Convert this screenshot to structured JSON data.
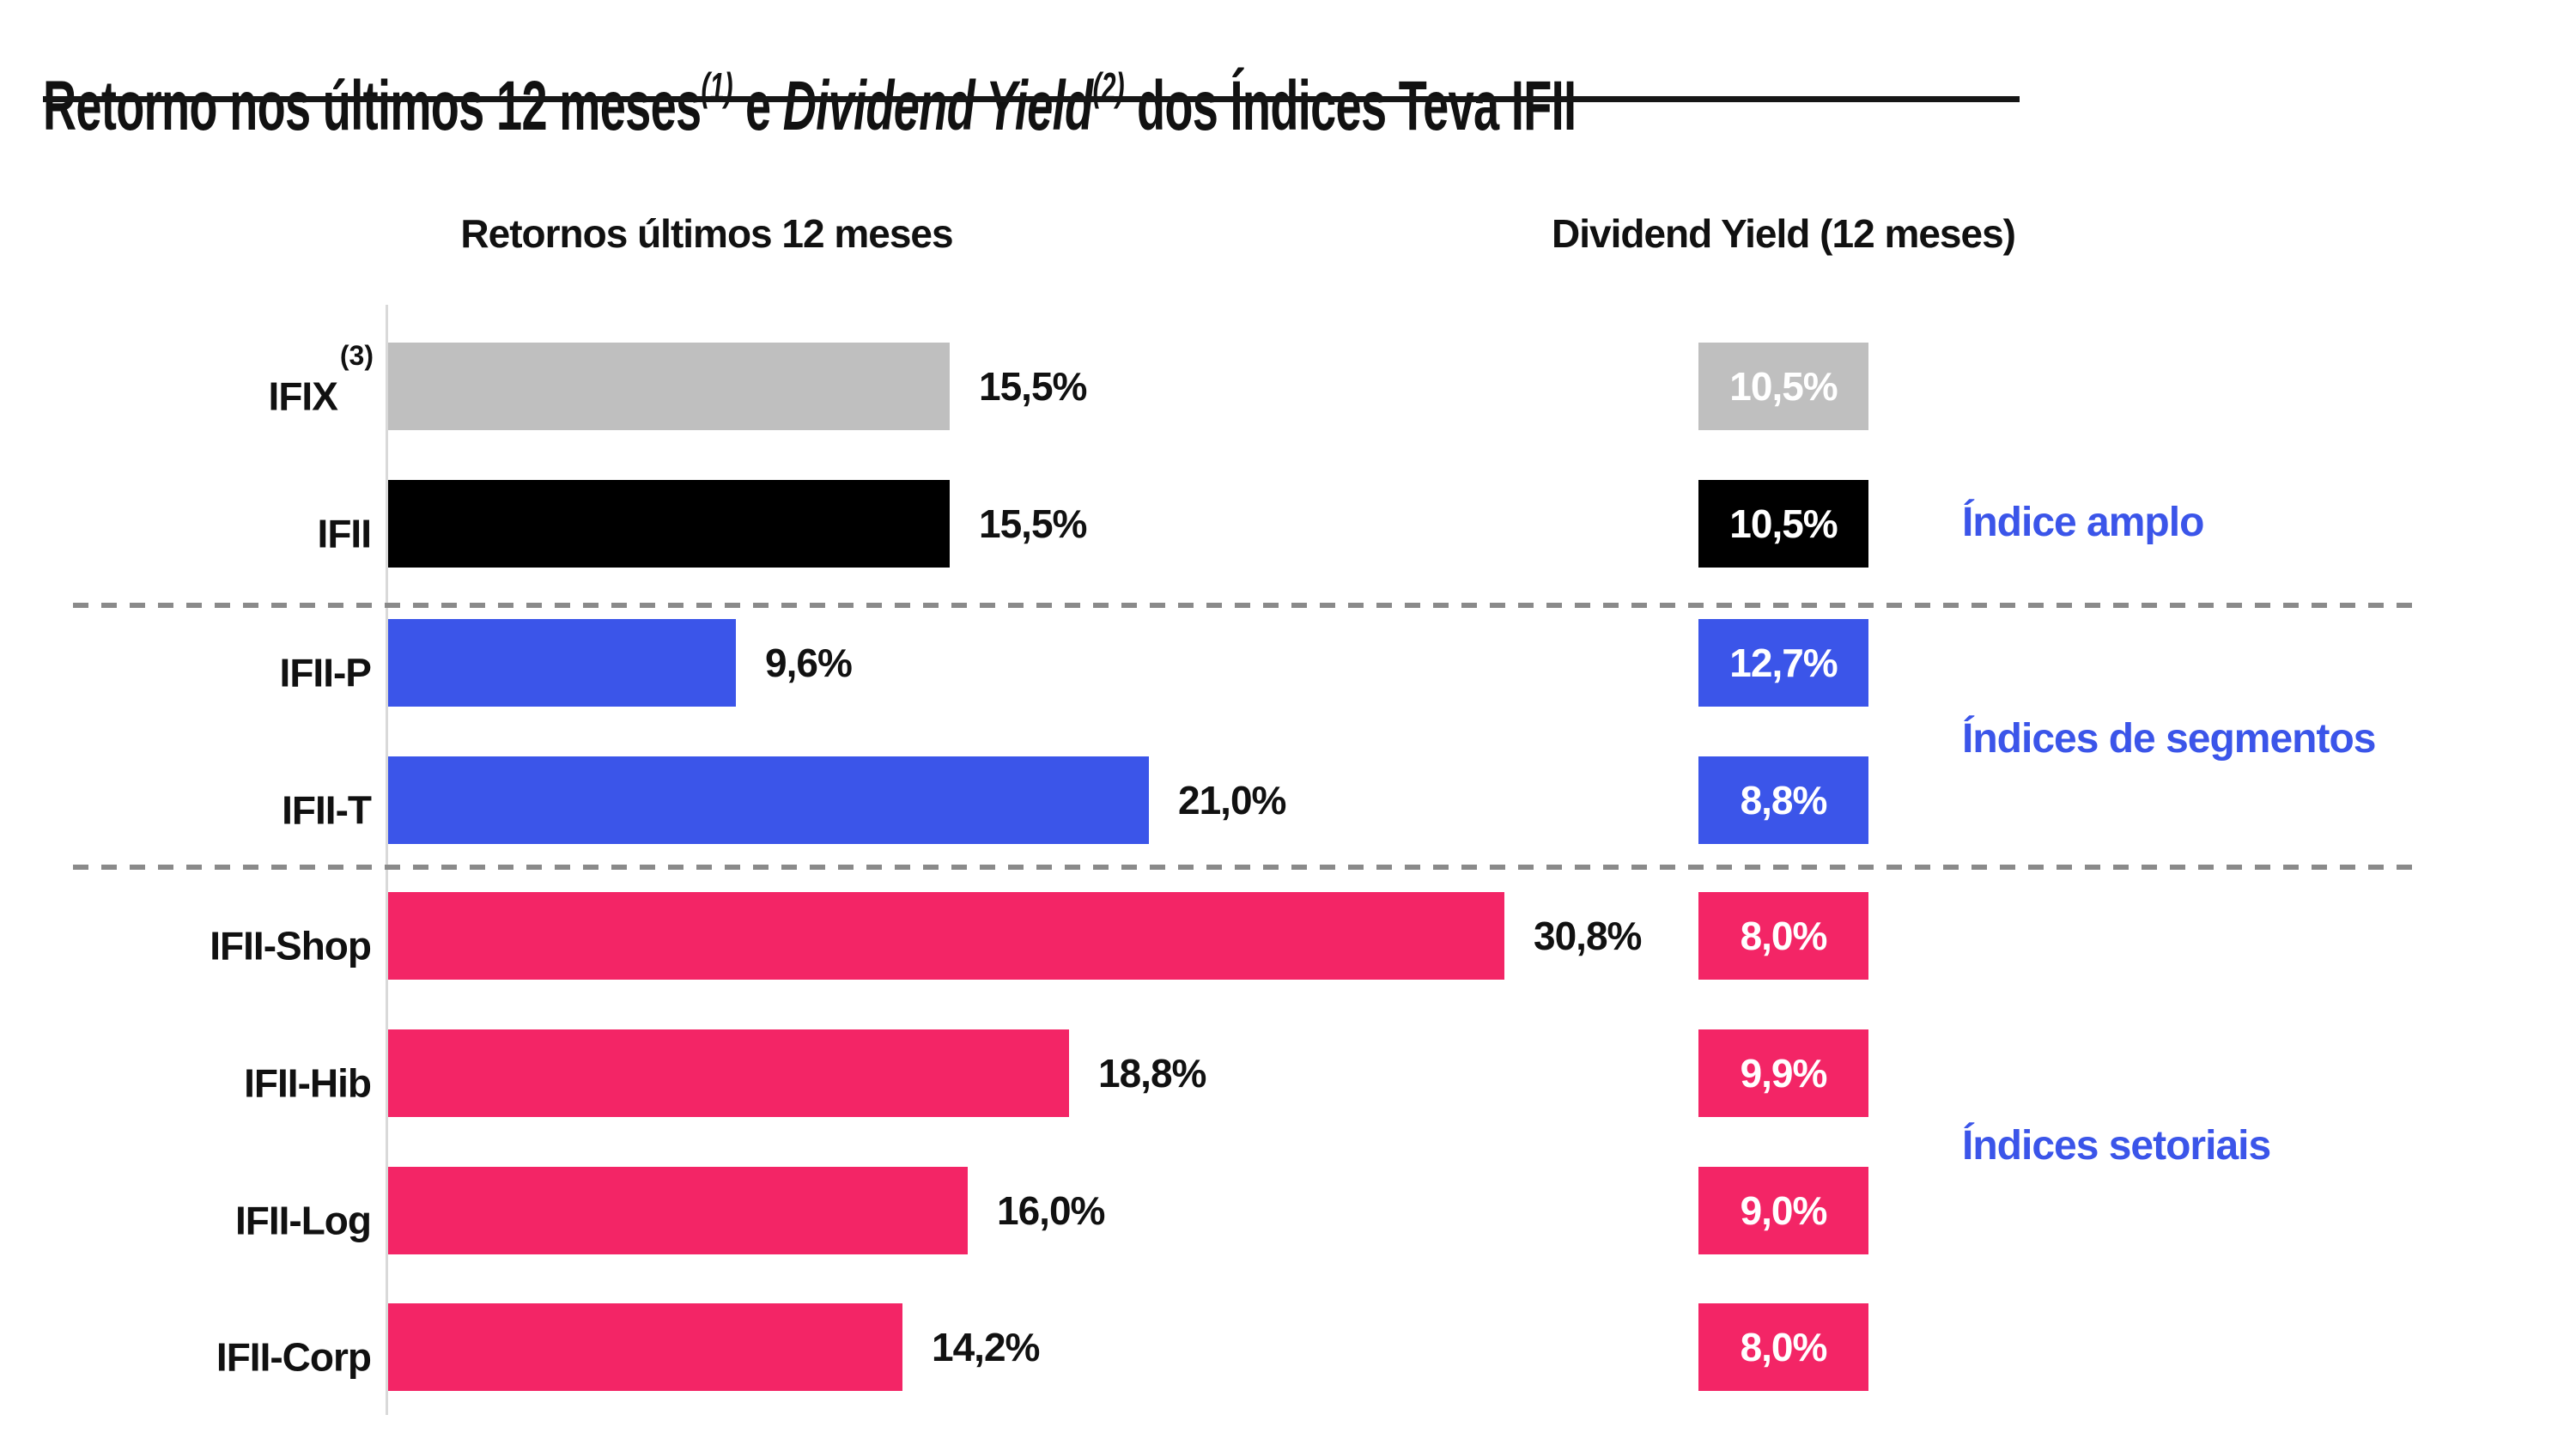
{
  "title": {
    "prefix": "Retorno nos últimos 12 meses",
    "sup1": "(1)",
    "connector": " e ",
    "italic_part": "Dividend Yield",
    "sup2": "(2)",
    "suffix": " dos Índices Teva IFII"
  },
  "headers": {
    "returns": "Retornos últimos 12 meses",
    "dividend_yield": "Dividend Yield (12 meses)"
  },
  "colors": {
    "gray": "#BFBFBF",
    "black": "#000000",
    "blue": "#3B55E9",
    "pink": "#F32566",
    "group_label_blue": "#3B55E9",
    "dashed_divider": "#8A8A8A",
    "axis_line": "#D9D9D9"
  },
  "chart_data": {
    "type": "bar",
    "orientation": "horizontal",
    "title": "Retorno nos últimos 12 meses e Dividend Yield dos Índices Teva IFII",
    "x_axis_range_pct": [
      0,
      31
    ],
    "grid": false,
    "categories": [
      "IFIX",
      "IFII",
      "IFII-P",
      "IFII-T",
      "IFII-Shop",
      "IFII-Hib",
      "IFII-Log",
      "IFII-Corp"
    ],
    "series": [
      {
        "name": "Retornos últimos 12 meses",
        "values": [
          15.5,
          15.5,
          9.6,
          21.0,
          30.8,
          18.8,
          16.0,
          14.2
        ]
      },
      {
        "name": "Dividend Yield (12 meses)",
        "values": [
          10.5,
          10.5,
          12.7,
          8.8,
          8.0,
          9.9,
          9.0,
          8.0
        ]
      }
    ],
    "rows": [
      {
        "label": "IFIX",
        "sup": "(3)",
        "return_pct": 15.5,
        "return_label": "15,5%",
        "dy_pct": 10.5,
        "dy_label": "10,5%",
        "color": "#BFBFBF"
      },
      {
        "label": "IFII",
        "return_pct": 15.5,
        "return_label": "15,5%",
        "dy_pct": 10.5,
        "dy_label": "10,5%",
        "color": "#000000"
      },
      {
        "label": "IFII-P",
        "return_pct": 9.6,
        "return_label": "9,6%",
        "dy_pct": 12.7,
        "dy_label": "12,7%",
        "color": "#3B55E9"
      },
      {
        "label": "IFII-T",
        "return_pct": 21.0,
        "return_label": "21,0%",
        "dy_pct": 8.8,
        "dy_label": "8,8%",
        "color": "#3B55E9"
      },
      {
        "label": "IFII-Shop",
        "return_pct": 30.8,
        "return_label": "30,8%",
        "dy_pct": 8.0,
        "dy_label": "8,0%",
        "color": "#F32566"
      },
      {
        "label": "IFII-Hib",
        "return_pct": 18.8,
        "return_label": "18,8%",
        "dy_pct": 9.9,
        "dy_label": "9,9%",
        "color": "#F32566"
      },
      {
        "label": "IFII-Log",
        "return_pct": 16.0,
        "return_label": "16,0%",
        "dy_pct": 9.0,
        "dy_label": "9,0%",
        "color": "#F32566"
      },
      {
        "label": "IFII-Corp",
        "return_pct": 14.2,
        "return_label": "14,2%",
        "dy_pct": 8.0,
        "dy_label": "8,0%",
        "color": "#F32566"
      }
    ],
    "groups": [
      {
        "label": "Índice amplo"
      },
      {
        "label": "Índices de segmentos"
      },
      {
        "label": "Índices setoriais"
      }
    ],
    "legend_position": "none"
  },
  "layout_constants_note": "px_per_percent used for bar lengths derives from 15.5% = 654px"
}
